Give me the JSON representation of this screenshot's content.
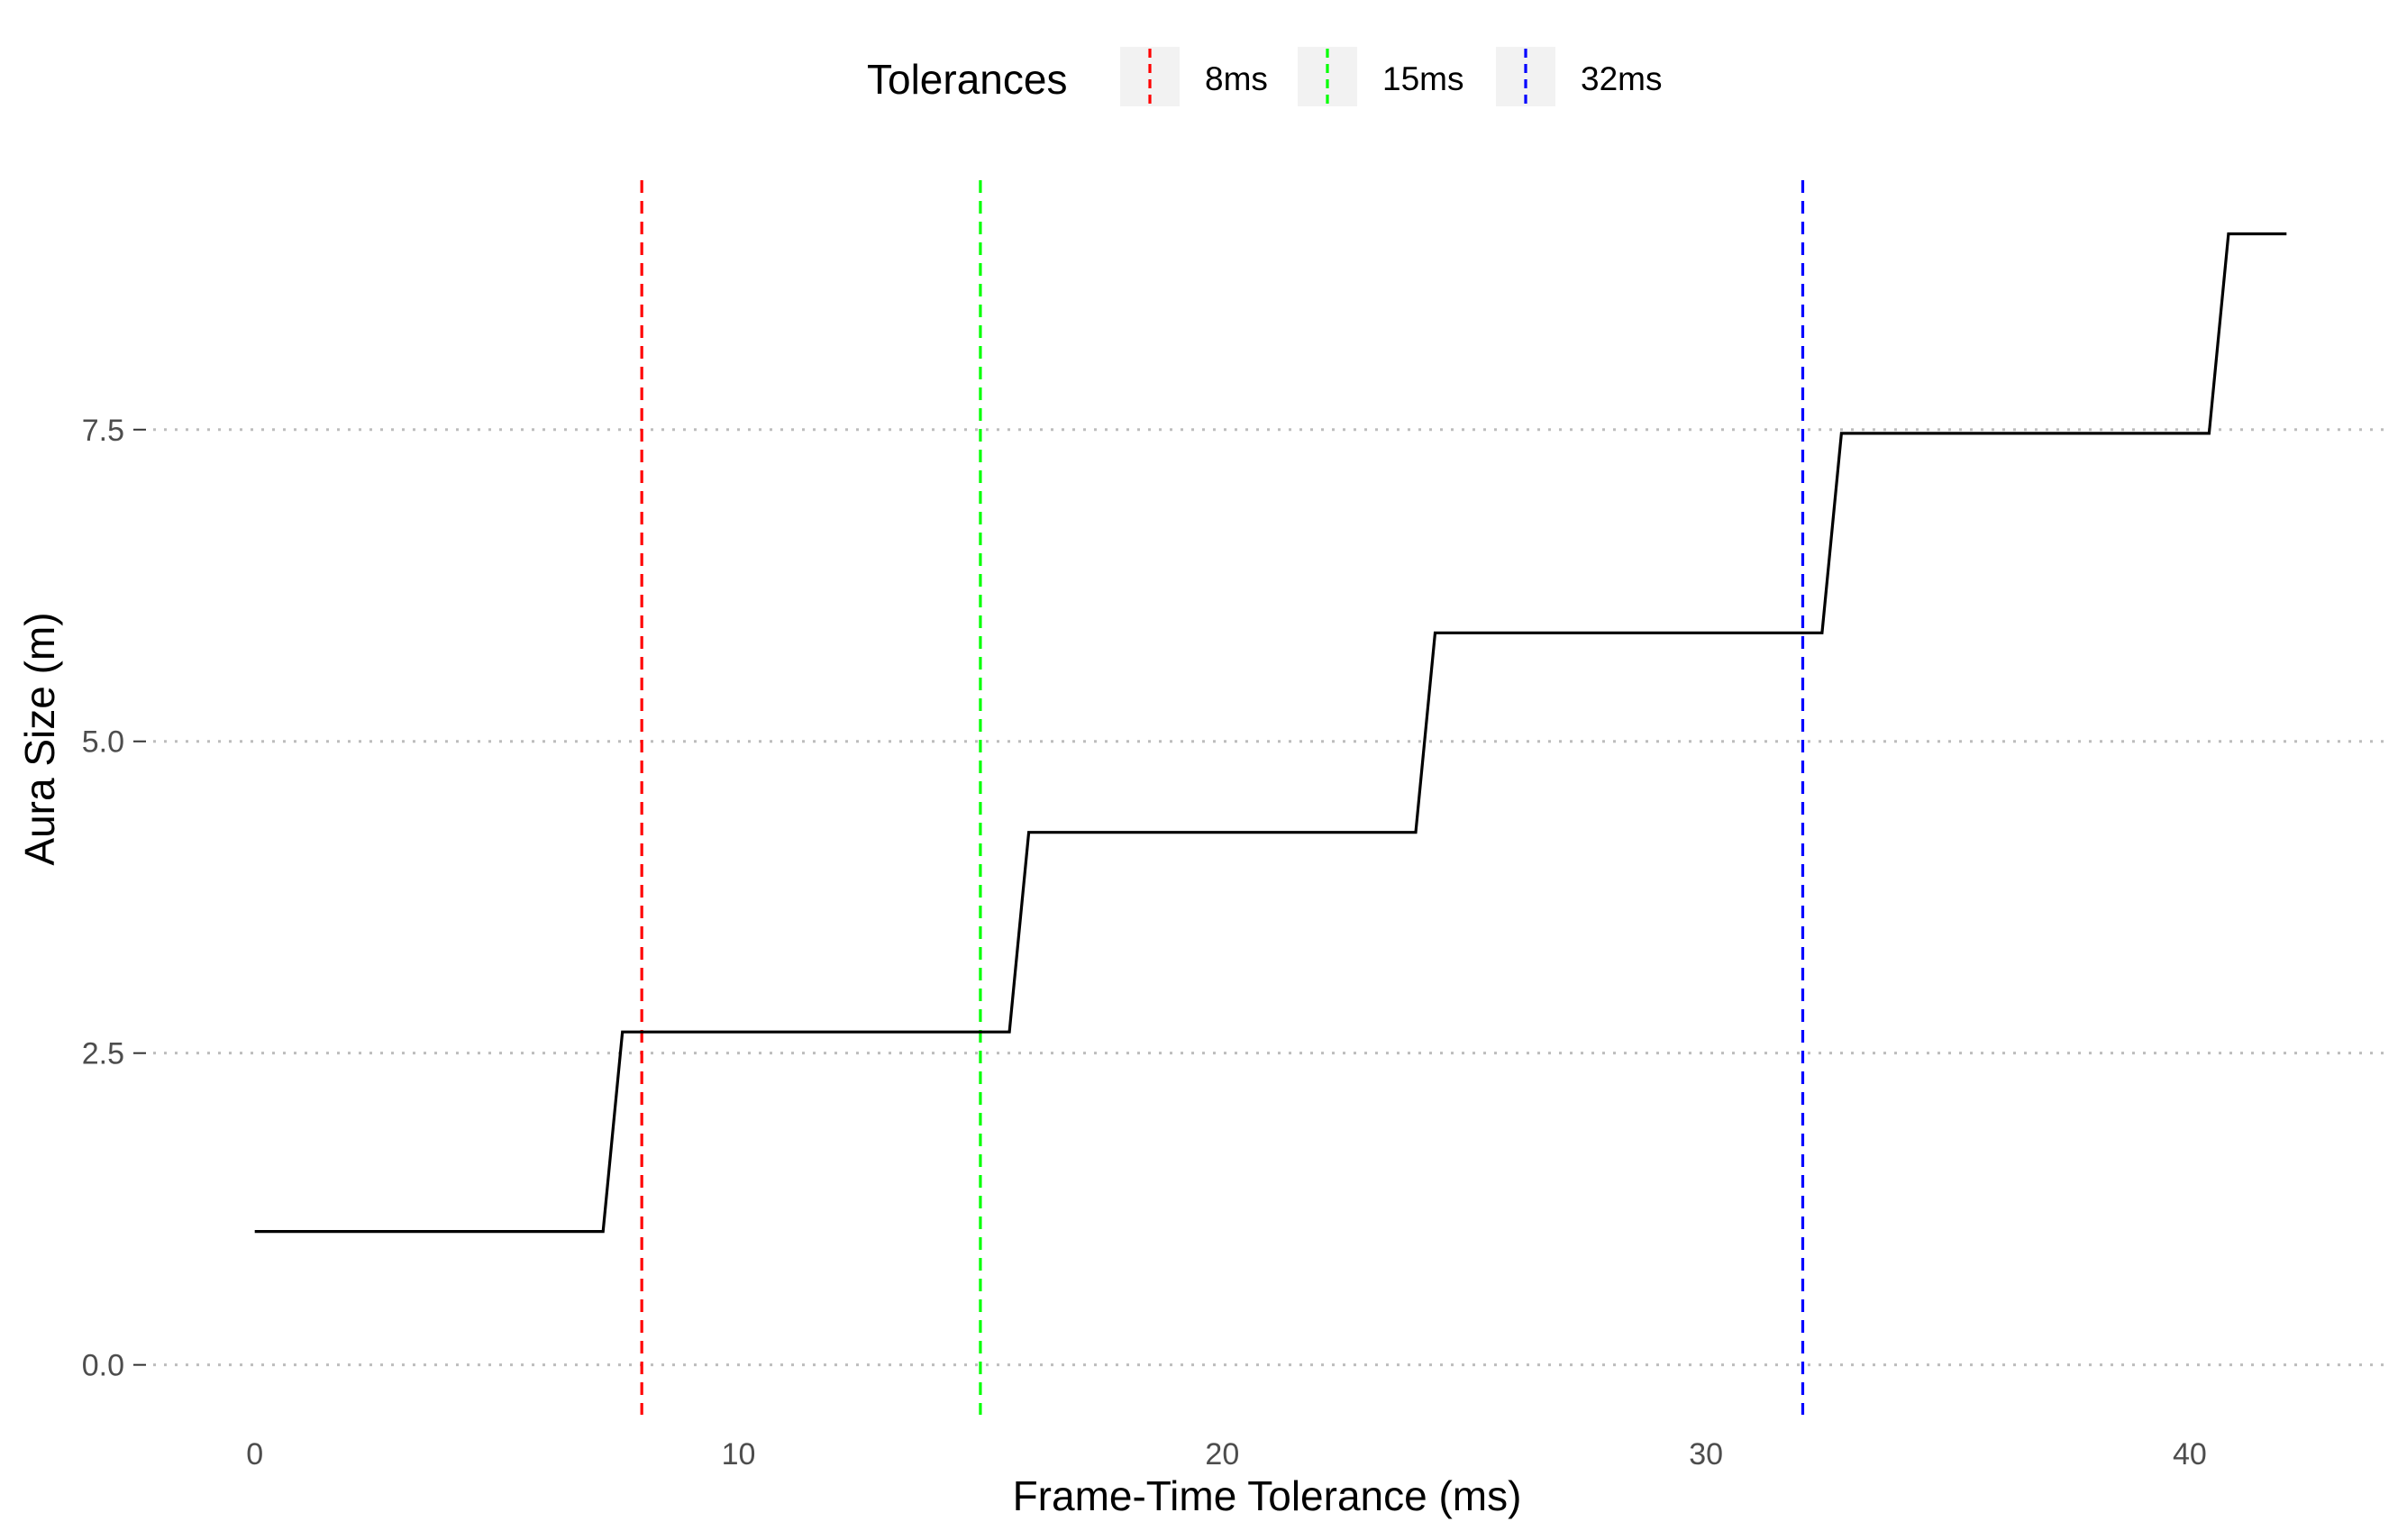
{
  "chart_data": {
    "type": "line",
    "xlabel": "Frame-Time Tolerance (ms)",
    "ylabel": "Aura Size (m)",
    "xlim": [
      -2.1,
      44.1
    ],
    "ylim": [
      -0.4,
      9.5
    ],
    "x_ticks": [
      0,
      10,
      20,
      30,
      40
    ],
    "x_tick_labels": [
      "0",
      "10",
      "20",
      "30",
      "40"
    ],
    "y_ticks": [
      0,
      2.5,
      5,
      7.5
    ],
    "y_tick_labels": [
      "0.0",
      "2.5",
      "5.0",
      "7.5"
    ],
    "grid": "horizontal dotted major lines only",
    "series": [
      {
        "color": "#000000",
        "x": [
          0,
          7.2,
          7.6,
          15.6,
          16.0,
          24.0,
          24.4,
          32.4,
          32.8,
          40.4,
          40.8,
          42.0
        ],
        "y": [
          1.07,
          1.07,
          2.67,
          2.67,
          4.27,
          4.27,
          5.87,
          5.87,
          7.47,
          7.47,
          9.07,
          9.07
        ]
      }
    ],
    "vlines": [
      {
        "x": 8,
        "label": "8ms",
        "color": "#ff0000"
      },
      {
        "x": 15,
        "label": "15ms",
        "color": "#00ff00"
      },
      {
        "x": 32,
        "label": "32ms",
        "color": "#0000ff"
      }
    ],
    "legend": {
      "title": "Tolerances",
      "position": "top",
      "entries": [
        "8ms",
        "15ms",
        "32ms"
      ]
    }
  }
}
